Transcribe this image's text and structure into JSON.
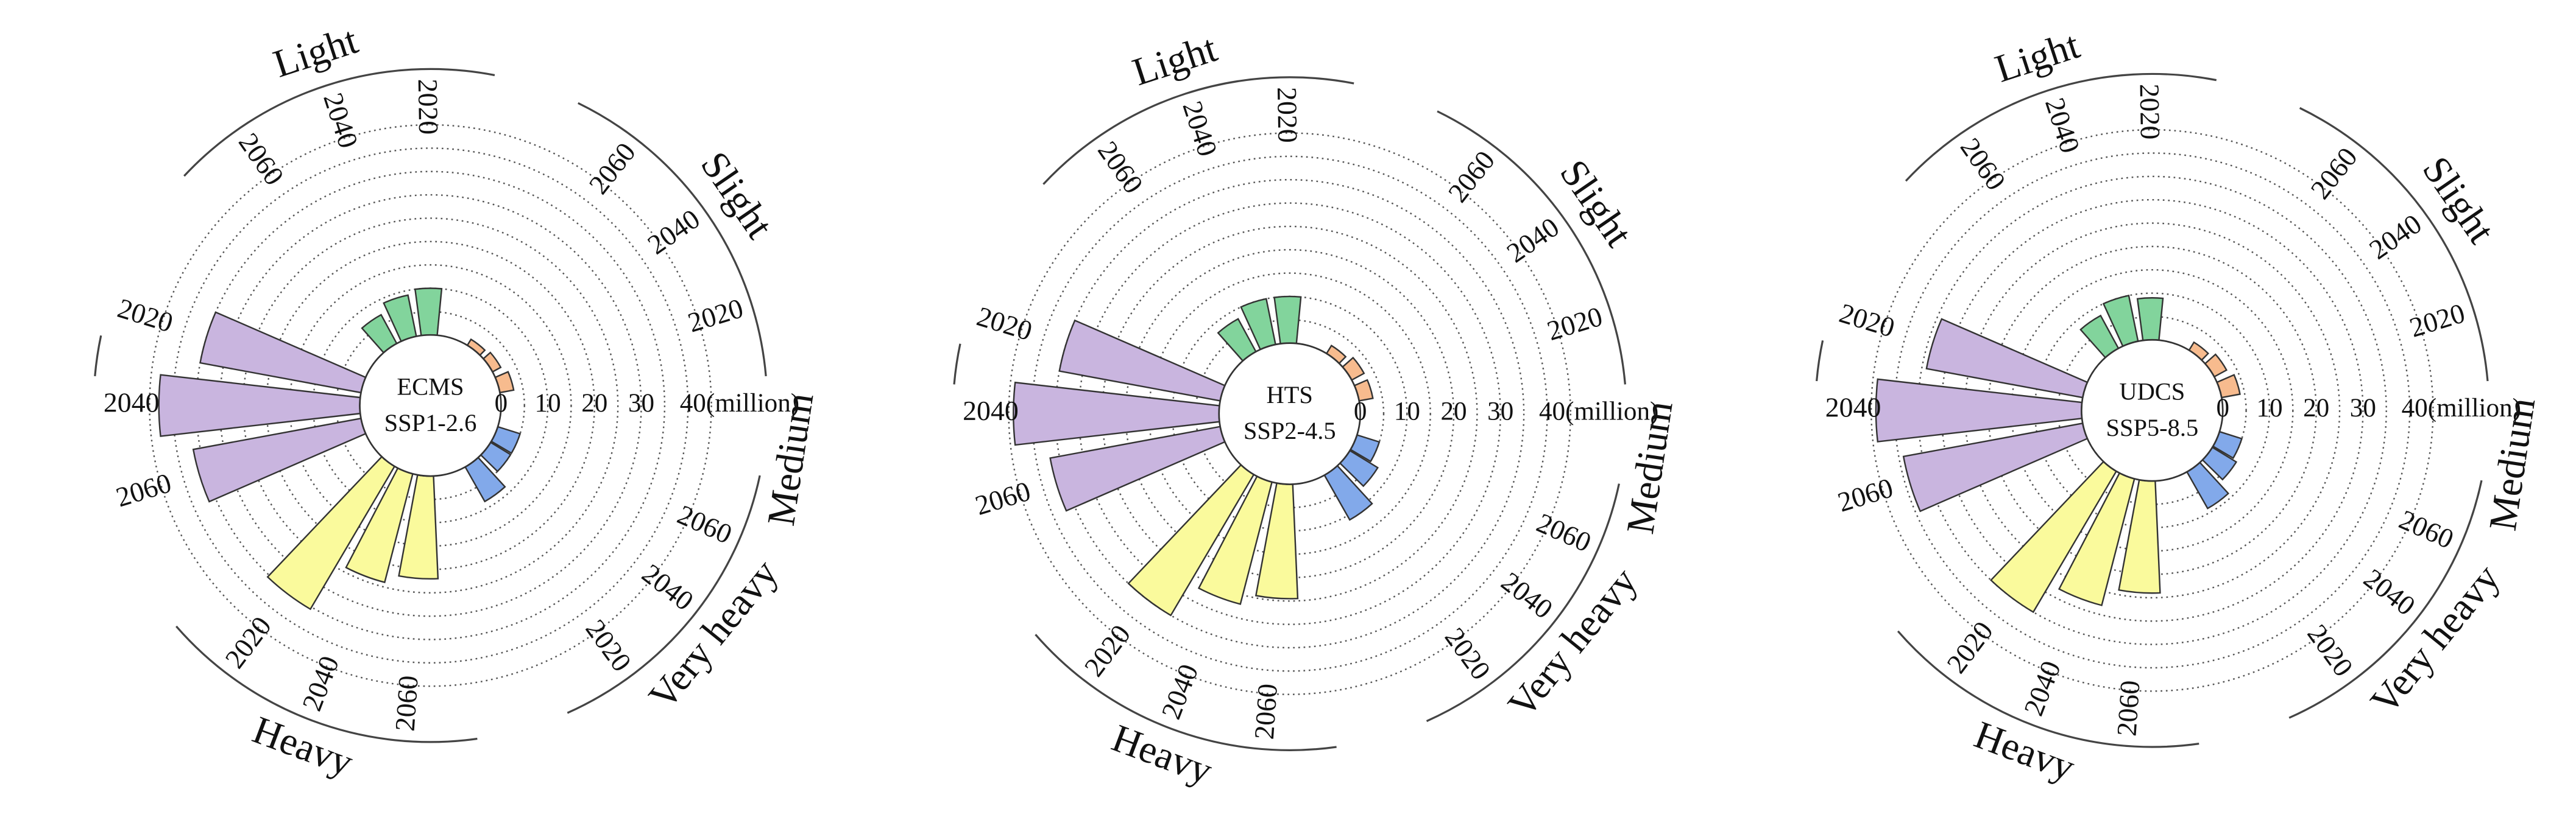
{
  "chart_data": [
    {
      "type": "polar_bar",
      "center_text": [
        "ECMS",
        "SSP1-2.6"
      ],
      "years": [
        "2020",
        "2040",
        "2060"
      ],
      "rlim": [
        0,
        45
      ],
      "rticks": [
        0,
        10,
        20,
        30,
        {
          "value": 40,
          "label": "40(million)"
        }
      ],
      "rgrid": [
        5,
        10,
        15,
        20,
        25,
        30,
        35,
        40,
        45
      ],
      "series": [
        {
          "name": "Light",
          "color": "#82d49c",
          "values": [
            10,
            9,
            7
          ]
        },
        {
          "name": "Slight",
          "color": "#f7bb8e",
          "values": [
            3,
            2,
            1.5
          ]
        },
        {
          "name": "Very heavy",
          "color": "#82a9ea",
          "values": [
            8.5,
            5,
            5
          ]
        },
        {
          "name": "Heavy",
          "color": "#fafa9c",
          "values": [
            35.5,
            24,
            22
          ]
        },
        {
          "name": "Medium",
          "color": "#c9b5df",
          "values": [
            35,
            43,
            36.5
          ]
        }
      ]
    },
    {
      "type": "polar_bar",
      "center_text": [
        "HTS",
        "SSP2-4.5"
      ],
      "years": [
        "2020",
        "2040",
        "2060"
      ],
      "rlim": [
        0,
        45
      ],
      "rticks": [
        0,
        10,
        20,
        30,
        {
          "value": 40,
          "label": "40(million)"
        }
      ],
      "rgrid": [
        5,
        10,
        15,
        20,
        25,
        30,
        35,
        40,
        45
      ],
      "series": [
        {
          "name": "Light",
          "color": "#82d49c",
          "values": [
            10,
            10,
            8
          ]
        },
        {
          "name": "Slight",
          "color": "#f7bb8e",
          "values": [
            3,
            3,
            2
          ]
        },
        {
          "name": "Very heavy",
          "color": "#82a9ea",
          "values": [
            11,
            7,
            5
          ]
        },
        {
          "name": "Heavy",
          "color": "#fafa9c",
          "values": [
            35,
            27,
            24.5
          ]
        },
        {
          "name": "Medium",
          "color": "#c9b5df",
          "values": [
            35,
            44,
            37
          ]
        }
      ]
    },
    {
      "type": "polar_bar",
      "center_text": [
        "UDCS",
        "SSP5-8.5"
      ],
      "years": [
        "2020",
        "2040",
        "2060"
      ],
      "rlim": [
        0,
        45
      ],
      "rticks": [
        0,
        10,
        20,
        30,
        {
          "value": 40,
          "label": "40(million)"
        }
      ],
      "rgrid": [
        5,
        10,
        15,
        20,
        25,
        30,
        35,
        40,
        45
      ],
      "series": [
        {
          "name": "Light",
          "color": "#82d49c",
          "values": [
            9,
            10,
            8
          ]
        },
        {
          "name": "Slight",
          "color": "#f7bb8e",
          "values": [
            4,
            3,
            2
          ]
        },
        {
          "name": "Very heavy",
          "color": "#82a9ea",
          "values": [
            9,
            6,
            5
          ]
        },
        {
          "name": "Heavy",
          "color": "#fafa9c",
          "values": [
            35,
            28,
            24
          ]
        },
        {
          "name": "Medium",
          "color": "#c9b5df",
          "values": [
            34,
            44,
            39
          ]
        }
      ]
    }
  ]
}
